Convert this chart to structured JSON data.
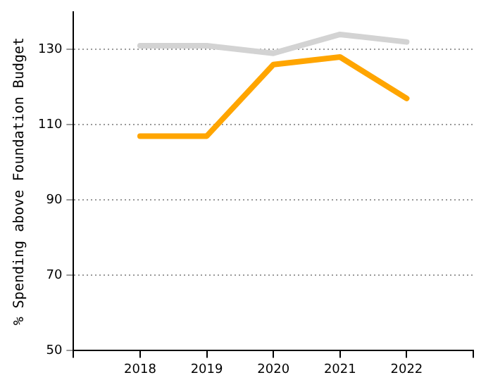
{
  "chart_data": {
    "type": "line",
    "ylabel": "% Spending above Foundation Budget",
    "x": [
      2018,
      2019,
      2020,
      2021,
      2022
    ],
    "series": [
      {
        "color": "#d3d3d3",
        "values": [
          131,
          131,
          129,
          134,
          132
        ]
      },
      {
        "color": "#ffa500",
        "values": [
          107,
          107,
          126,
          128,
          117
        ]
      }
    ],
    "xlim": [
      2017,
      2023
    ],
    "xticks": [
      {
        "value": 2017,
        "label": null
      },
      2018,
      2019,
      2020,
      2021,
      2022,
      {
        "value": 2023,
        "label": null
      }
    ],
    "ylim": [
      50,
      140
    ],
    "yticks": [
      50,
      70,
      90,
      110,
      130
    ],
    "grid": "y",
    "legend": false,
    "marker": "none",
    "line_style": "solid"
  }
}
